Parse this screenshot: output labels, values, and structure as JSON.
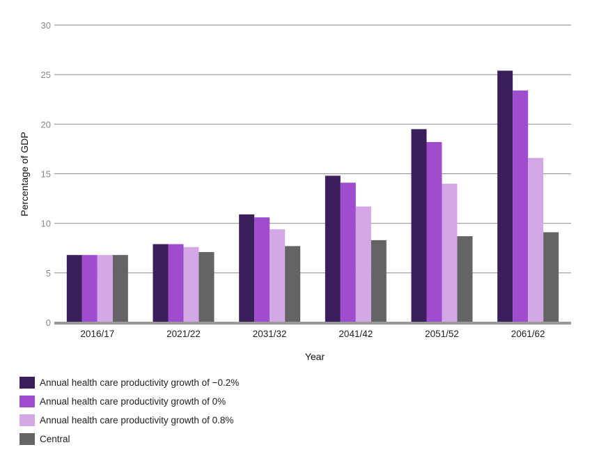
{
  "chart_data": {
    "type": "bar",
    "xlabel": "Year",
    "ylabel": "Percentage of GDP",
    "ylim": [
      0,
      30
    ],
    "yticks": [
      0,
      5,
      10,
      15,
      20,
      25,
      30
    ],
    "grid": true,
    "legend_position": "bottom-left",
    "categories": [
      "2016/17",
      "2021/22",
      "2031/32",
      "2041/42",
      "2051/52",
      "2061/62"
    ],
    "series": [
      {
        "name": "Annual health care productivity growth of −0.2%",
        "color": "#3b1f5c",
        "values": [
          6.8,
          7.9,
          10.9,
          14.8,
          19.5,
          25.4
        ]
      },
      {
        "name": "Annual health care productivity growth of 0%",
        "color": "#a04ccf",
        "values": [
          6.8,
          7.9,
          10.6,
          14.1,
          18.2,
          23.4
        ]
      },
      {
        "name": "Annual health care productivity growth of 0.8%",
        "color": "#d4a8e6",
        "values": [
          6.8,
          7.6,
          9.4,
          11.7,
          14.0,
          16.6
        ]
      },
      {
        "name": "Central",
        "color": "#646366",
        "values": [
          6.8,
          7.1,
          7.7,
          8.3,
          8.7,
          9.1
        ]
      }
    ]
  }
}
